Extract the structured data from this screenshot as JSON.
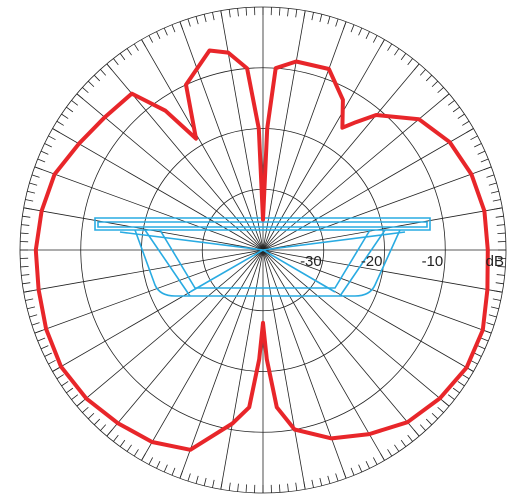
{
  "chart_data": {
    "type": "polar",
    "theta": [
      0,
      2,
      4,
      10,
      20,
      28,
      33,
      36,
      40,
      50,
      60,
      70,
      80,
      90,
      100,
      110,
      120,
      130,
      140,
      150,
      160,
      170,
      175,
      178,
      180,
      182,
      185,
      190,
      200,
      210,
      220,
      230,
      240,
      250,
      260,
      270,
      280,
      290,
      300,
      310,
      320,
      325,
      329,
      335,
      345,
      350,
      355,
      358
    ],
    "series": [
      {
        "color": "#e8262a",
        "values": [
          -35,
          -20,
          -10,
          -8.5,
          -8.3,
          -12,
          -16,
          -14,
          -11,
          -6.5,
          -4.5,
          -3.5,
          -3,
          -3,
          -2.5,
          -1.5,
          -1.3,
          -2,
          -3,
          -5,
          -7,
          -10,
          -14,
          -22,
          -28,
          -22,
          -14,
          -11,
          -5,
          -3.5,
          -2.8,
          -2,
          -1.6,
          -2,
          -2.5,
          -2.6,
          -3,
          -3.5,
          -5,
          -6,
          -6.4,
          -12,
          -18.6,
          -10,
          -6,
          -7,
          -10,
          -20
        ]
      }
    ],
    "rlim": [
      -40,
      0
    ],
    "rticks": [
      -30,
      -20,
      -10,
      {
        "value": 0,
        "label": "dB"
      }
    ],
    "thetaticks": [
      0,
      10,
      20,
      30,
      40,
      50,
      60,
      70,
      80,
      90,
      100,
      110,
      120,
      130,
      140,
      150,
      160,
      170,
      180,
      190,
      200,
      210,
      220,
      230,
      240,
      250,
      260,
      270,
      280,
      290,
      300,
      310,
      320,
      330,
      340,
      350
    ],
    "grid": true
  }
}
